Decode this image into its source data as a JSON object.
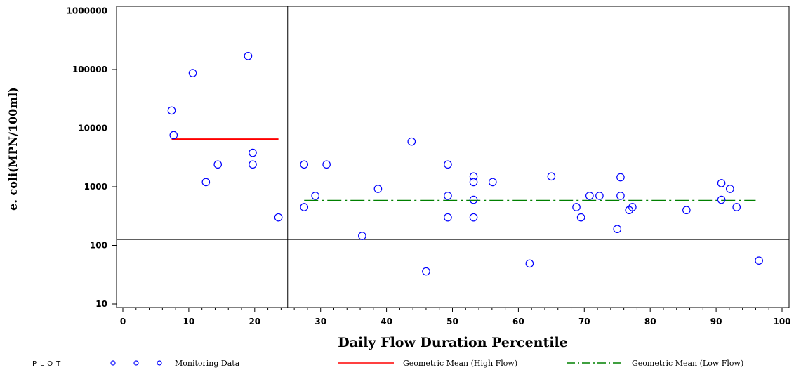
{
  "chart_data": {
    "type": "scatter",
    "xlabel": "Daily Flow Duration Percentile",
    "ylabel": "e. coli(MPN/100ml)",
    "xlim": [
      0,
      100
    ],
    "ylim": [
      10,
      1000000
    ],
    "yscale": "log",
    "x_ticks": [
      0,
      10,
      20,
      30,
      40,
      50,
      60,
      70,
      80,
      90,
      100
    ],
    "x_tick_labels": [
      "0",
      "10",
      "20",
      "30",
      "40",
      "50",
      "60",
      "70",
      "80",
      "90",
      "100"
    ],
    "y_ticks": [
      10,
      100,
      1000,
      10000,
      100000,
      1000000
    ],
    "y_tick_labels": [
      "10",
      "100",
      "1000",
      "10000",
      "100000",
      "1000000"
    ],
    "reference_lines": {
      "vertical_x": 25,
      "horizontal_y": 126
    },
    "legend_placement": "bottom",
    "series": [
      {
        "name": "Monitoring Data",
        "kind": "points",
        "color": "#0000ff",
        "points": [
          [
            7.4,
            20000
          ],
          [
            7.7,
            7600
          ],
          [
            10.6,
            87000
          ],
          [
            12.6,
            1200
          ],
          [
            14.4,
            2400
          ],
          [
            19.0,
            170000
          ],
          [
            19.7,
            3800
          ],
          [
            19.7,
            2400
          ],
          [
            23.6,
            300
          ],
          [
            27.5,
            2400
          ],
          [
            27.5,
            450
          ],
          [
            29.2,
            700
          ],
          [
            30.9,
            2400
          ],
          [
            36.3,
            145
          ],
          [
            38.7,
            920
          ],
          [
            43.8,
            5900
          ],
          [
            46.0,
            36
          ],
          [
            49.3,
            2400
          ],
          [
            49.3,
            700
          ],
          [
            49.3,
            300
          ],
          [
            53.2,
            1500
          ],
          [
            53.2,
            1200
          ],
          [
            53.2,
            600
          ],
          [
            53.2,
            300
          ],
          [
            56.1,
            1200
          ],
          [
            61.7,
            49
          ],
          [
            65.0,
            1500
          ],
          [
            68.8,
            450
          ],
          [
            69.5,
            300
          ],
          [
            70.8,
            700
          ],
          [
            72.3,
            700
          ],
          [
            75.0,
            190
          ],
          [
            75.5,
            1450
          ],
          [
            75.5,
            700
          ],
          [
            76.8,
            400
          ],
          [
            77.3,
            450
          ],
          [
            85.5,
            400
          ],
          [
            90.8,
            1150
          ],
          [
            90.8,
            600
          ],
          [
            92.1,
            920
          ],
          [
            93.1,
            450
          ],
          [
            96.5,
            55
          ]
        ]
      },
      {
        "name": "Geometric Mean (High Flow)",
        "kind": "segment",
        "color": "#ff0000",
        "dash": "solid",
        "x": [
          7.4,
          23.6
        ],
        "y": 6500
      },
      {
        "name": "Geometric Mean (Low Flow)",
        "kind": "segment",
        "color": "#008000",
        "dash": "dash-dot",
        "x": [
          27.5,
          96.0
        ],
        "y": 580
      }
    ]
  },
  "legend": {
    "key_label": "PLOT",
    "items": [
      {
        "label": "Monitoring Data",
        "color": "#0000ff"
      },
      {
        "label": "Geometric Mean (High Flow)",
        "color": "#ff0000"
      },
      {
        "label": "Geometric Mean (Low Flow)",
        "color": "#008000"
      }
    ]
  }
}
